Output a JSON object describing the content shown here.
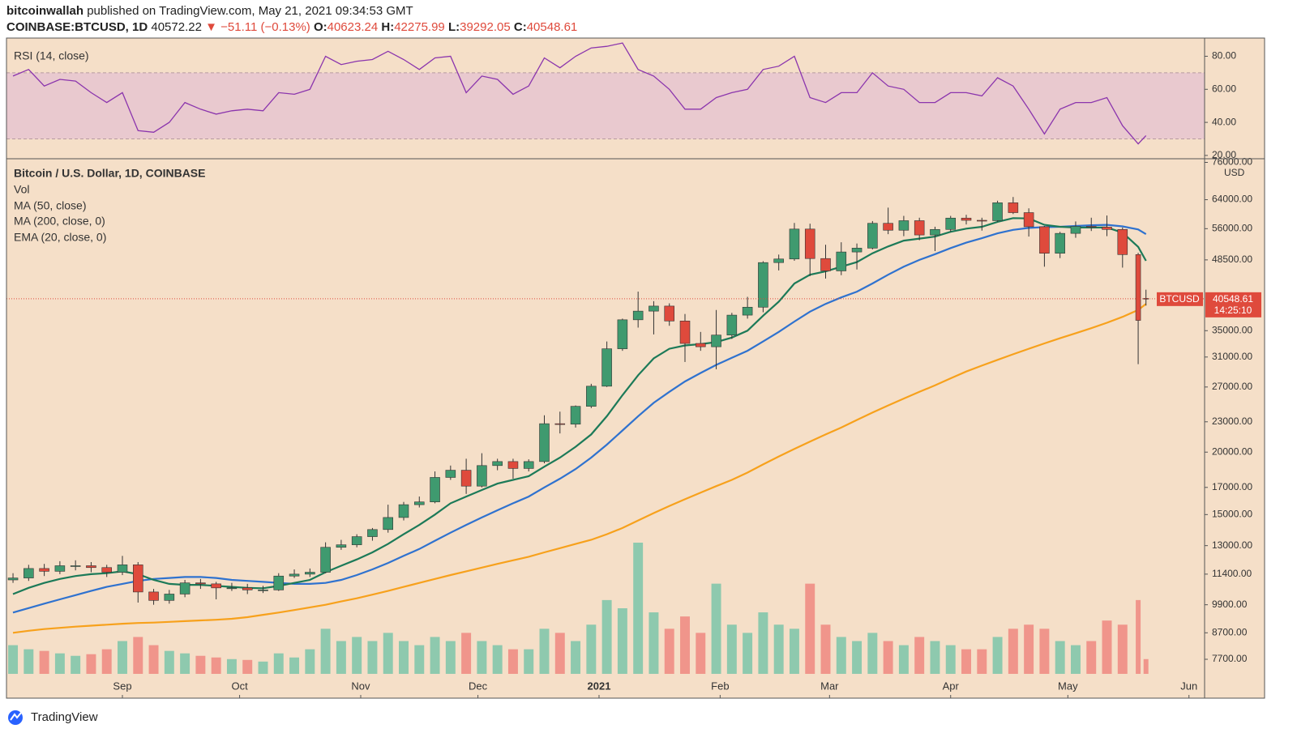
{
  "header": {
    "publisher": "bitcoinwallah",
    "published": "published on TradingView.com, May 21, 2021 09:34:53 GMT",
    "symbol": "COINBASE:BTCUSD, 1D",
    "last": "40572.22",
    "change_arrow": "▼",
    "change": "−51.11 (−0.13%)",
    "open_label": "O:",
    "open": "40623.24",
    "high_label": "H:",
    "high": "42275.99",
    "low_label": "L:",
    "low": "39292.05",
    "close_label": "C:",
    "close": "40548.61"
  },
  "chart_data": {
    "type": "candlestick",
    "title": "Bitcoin / U.S. Dollar, 1D, COINBASE",
    "currency": "USD",
    "log_scale": true,
    "up_color": "#3f9a6f",
    "down_color": "#df4a3c",
    "x": [
      3,
      7,
      11,
      15,
      19,
      23,
      27,
      31,
      35,
      39,
      43,
      47,
      51,
      55,
      59,
      63,
      67,
      71,
      75,
      79,
      83,
      87,
      91,
      95,
      99,
      103,
      107,
      111,
      115,
      119,
      123,
      127,
      131,
      135,
      139,
      143,
      147,
      151,
      155,
      159,
      163,
      167,
      171,
      175,
      179,
      183,
      187,
      191,
      195,
      199,
      203,
      207,
      211,
      215,
      219,
      223,
      227,
      231,
      235,
      239,
      243,
      247,
      251,
      255,
      259,
      263,
      267,
      271,
      275,
      279,
      283,
      287,
      291,
      293
    ],
    "open": [
      11100,
      11200,
      11700,
      11550,
      11850,
      11850,
      11750,
      11500,
      11900,
      10500,
      10100,
      10400,
      10950,
      10900,
      10700,
      10700,
      10600,
      10600,
      11300,
      11400,
      11500,
      12900,
      13050,
      13550,
      14000,
      14800,
      15700,
      15900,
      17800,
      18400,
      17100,
      18800,
      19150,
      18550,
      19150,
      22800,
      22750,
      24700,
      27100,
      32200,
      36800,
      38300,
      39200,
      36600,
      33000,
      32500,
      34300,
      37600,
      39000,
      47900,
      48700,
      55900,
      48800,
      46100,
      50300,
      51200,
      57400,
      55600,
      58100,
      54400,
      55800,
      58800,
      58200,
      58100,
      63100,
      60300,
      56500,
      50000,
      54800,
      56600,
      56400,
      55800,
      49700,
      40623.24
    ],
    "high": [
      11450,
      11900,
      11950,
      12100,
      12150,
      12050,
      11900,
      12400,
      12050,
      10650,
      10600,
      11100,
      11150,
      11000,
      10950,
      10900,
      10800,
      11450,
      11650,
      11700,
      13200,
      13350,
      13700,
      14100,
      15700,
      15900,
      16300,
      18300,
      18800,
      19400,
      19900,
      19400,
      19400,
      19350,
      23700,
      24100,
      24800,
      27400,
      33300,
      37000,
      41900,
      40100,
      39700,
      37800,
      34800,
      38500,
      38000,
      40900,
      48200,
      49700,
      57500,
      57300,
      52000,
      52600,
      52300,
      58000,
      61700,
      59400,
      58900,
      56500,
      59400,
      59700,
      58900,
      63700,
      64800,
      61500,
      56700,
      55200,
      57900,
      58900,
      59500,
      56300,
      50100,
      42275.99
    ],
    "low": [
      10950,
      11050,
      11300,
      11400,
      11600,
      11500,
      11250,
      11350,
      10000,
      9900,
      9950,
      10250,
      10650,
      10150,
      10550,
      10400,
      10450,
      10550,
      11200,
      11250,
      11450,
      12750,
      12900,
      13300,
      13800,
      14600,
      15500,
      15800,
      17600,
      16500,
      17000,
      18400,
      17700,
      18300,
      19000,
      21800,
      22400,
      24500,
      27000,
      31900,
      35500,
      34400,
      35800,
      30300,
      31900,
      29300,
      33700,
      37000,
      38100,
      46200,
      48300,
      45000,
      44500,
      45200,
      46400,
      50900,
      54600,
      54100,
      53100,
      50500,
      55200,
      57100,
      55500,
      57800,
      59900,
      54000,
      47000,
      48900,
      53700,
      55400,
      54100,
      46800,
      30000,
      39292.05
    ],
    "close": [
      11200,
      11700,
      11550,
      11850,
      11850,
      11750,
      11500,
      11900,
      10500,
      10100,
      10400,
      10950,
      10900,
      10700,
      10700,
      10600,
      10600,
      11300,
      11400,
      11500,
      12900,
      13050,
      13550,
      14000,
      14800,
      15700,
      15900,
      17800,
      18400,
      17100,
      18800,
      19150,
      18550,
      19150,
      22800,
      22750,
      24700,
      27100,
      32200,
      36800,
      38300,
      39200,
      36600,
      33000,
      32500,
      34300,
      37600,
      39000,
      47900,
      48700,
      55900,
      48800,
      46100,
      50300,
      51200,
      57400,
      55600,
      58100,
      54400,
      55800,
      58800,
      58200,
      58100,
      63100,
      60300,
      56500,
      50000,
      54800,
      56600,
      56400,
      55800,
      49700,
      36700,
      40548.61
    ],
    "xlim": [
      1.33,
      308
    ],
    "xticks": [
      {
        "value": 31,
        "label": "Sep"
      },
      {
        "value": 61,
        "label": "Oct"
      },
      {
        "value": 92,
        "label": "Nov"
      },
      {
        "value": 122,
        "label": "Dec"
      },
      {
        "value": 153,
        "label": "2021"
      },
      {
        "value": 184,
        "label": "Feb"
      },
      {
        "value": 212,
        "label": "Mar"
      },
      {
        "value": 243,
        "label": "Apr"
      },
      {
        "value": 273,
        "label": "May"
      },
      {
        "value": 304,
        "label": "Jun"
      }
    ],
    "ylim": [
      7200,
      77000
    ],
    "yticks": [
      {
        "value": 76000,
        "label": "76000.00"
      },
      {
        "value": 64000,
        "label": "64000.00"
      },
      {
        "value": 56000,
        "label": "56000.00"
      },
      {
        "value": 48500,
        "label": "48500.00"
      },
      {
        "value": 35000,
        "label": "35000.00"
      },
      {
        "value": 31000,
        "label": "31000.00"
      },
      {
        "value": 27000,
        "label": "27000.00"
      },
      {
        "value": 23000,
        "label": "23000.00"
      },
      {
        "value": 20000,
        "label": "20000.00"
      },
      {
        "value": 17000,
        "label": "17000.00"
      },
      {
        "value": 15000,
        "label": "15000.00"
      },
      {
        "value": 13000,
        "label": "13000.00"
      },
      {
        "value": 11400,
        "label": "11400.00"
      },
      {
        "value": 9900,
        "label": "9900.00"
      },
      {
        "value": 8700,
        "label": "8700.00"
      },
      {
        "value": 7700,
        "label": "7700.00"
      }
    ],
    "volume": {
      "name": "Vol",
      "up_color": "#8ec9ae",
      "down_color": "#f0958b",
      "values": [
        35,
        30,
        28,
        25,
        22,
        24,
        30,
        40,
        45,
        35,
        28,
        25,
        22,
        20,
        18,
        17,
        15,
        25,
        20,
        30,
        55,
        40,
        45,
        40,
        50,
        40,
        35,
        45,
        40,
        50,
        40,
        35,
        30,
        30,
        55,
        50,
        40,
        60,
        90,
        80,
        160,
        75,
        55,
        70,
        50,
        110,
        60,
        50,
        75,
        60,
        55,
        110,
        60,
        45,
        40,
        50,
        40,
        35,
        45,
        40,
        35,
        30,
        30,
        45,
        55,
        60,
        55,
        40,
        35,
        40,
        65,
        60,
        90,
        18
      ]
    },
    "indicators": [
      {
        "name": "MA (50, close)",
        "color": "#2f72cf",
        "values": [
          9550,
          9750,
          9950,
          10150,
          10350,
          10550,
          10750,
          10900,
          11050,
          11150,
          11200,
          11250,
          11250,
          11200,
          11100,
          11050,
          11000,
          10950,
          10900,
          10900,
          10950,
          11100,
          11350,
          11650,
          12000,
          12400,
          12800,
          13300,
          13800,
          14300,
          14800,
          15300,
          15800,
          16300,
          17000,
          17700,
          18500,
          19500,
          20700,
          22100,
          23600,
          25100,
          26400,
          27700,
          28800,
          29900,
          30900,
          31900,
          33300,
          34800,
          36500,
          38200,
          39600,
          40800,
          41900,
          43500,
          45300,
          47000,
          48500,
          49800,
          51200,
          52500,
          53600,
          54800,
          55700,
          56200,
          56400,
          56500,
          56700,
          56900,
          57000,
          56600,
          55800,
          54600
        ]
      },
      {
        "name": "MA (200, close, 0)",
        "color": "#f7a11c",
        "values": [
          8700,
          8780,
          8850,
          8900,
          8950,
          8990,
          9030,
          9070,
          9100,
          9120,
          9150,
          9180,
          9210,
          9240,
          9280,
          9350,
          9450,
          9550,
          9660,
          9780,
          9900,
          10050,
          10200,
          10370,
          10550,
          10750,
          10950,
          11150,
          11350,
          11550,
          11750,
          11950,
          12150,
          12350,
          12600,
          12850,
          13100,
          13350,
          13700,
          14100,
          14600,
          15100,
          15600,
          16100,
          16600,
          17100,
          17600,
          18200,
          18900,
          19600,
          20300,
          21000,
          21700,
          22400,
          23200,
          24000,
          24800,
          25600,
          26400,
          27200,
          28100,
          29000,
          29800,
          30600,
          31400,
          32200,
          33000,
          33800,
          34600,
          35400,
          36300,
          37300,
          38500,
          39600
        ]
      },
      {
        "name": "EMA (20, close, 0)",
        "color": "#1c7a58",
        "values": [
          10400,
          10700,
          10950,
          11150,
          11300,
          11400,
          11450,
          11550,
          11400,
          11100,
          10900,
          10850,
          10850,
          10800,
          10750,
          10700,
          10680,
          10800,
          10950,
          11100,
          11500,
          11850,
          12200,
          12600,
          13100,
          13700,
          14300,
          15000,
          15800,
          16300,
          16800,
          17300,
          17600,
          17900,
          18700,
          19500,
          20500,
          21700,
          23600,
          26000,
          28500,
          30800,
          32200,
          32700,
          32900,
          33200,
          33900,
          35000,
          37500,
          40000,
          43500,
          45300,
          46000,
          47000,
          48000,
          50000,
          51600,
          53000,
          53500,
          54000,
          55200,
          56000,
          56500,
          57800,
          58800,
          58700,
          57000,
          56500,
          56300,
          56300,
          56300,
          55000,
          51500,
          48300
        ]
      }
    ],
    "last_price": {
      "symbol": "BTCUSD",
      "value": 40548.61,
      "countdown": "14:25:10",
      "color": "#df4a3c"
    },
    "rsi": {
      "name": "RSI (14, close)",
      "color": "#8b35ad",
      "band": [
        30,
        70
      ],
      "band_color": "#e9c9cf",
      "ylim": [
        18,
        91
      ],
      "yticks": [
        {
          "value": 80,
          "label": "80.00"
        },
        {
          "value": 60,
          "label": "60.00"
        },
        {
          "value": 40,
          "label": "40.00"
        },
        {
          "value": 20,
          "label": "20.00"
        }
      ],
      "values": [
        68,
        72,
        62,
        66,
        65,
        58,
        52,
        58,
        35,
        34,
        40,
        52,
        48,
        45,
        47,
        48,
        47,
        58,
        57,
        60,
        80,
        75,
        77,
        78,
        83,
        78,
        72,
        79,
        80,
        58,
        68,
        66,
        57,
        62,
        79,
        73,
        80,
        85,
        86,
        88,
        72,
        68,
        60,
        48,
        48,
        55,
        58,
        60,
        72,
        74,
        80,
        55,
        52,
        58,
        58,
        70,
        62,
        60,
        52,
        52,
        58,
        58,
        56,
        67,
        62,
        48,
        33,
        48,
        52,
        52,
        55,
        38,
        27,
        32
      ]
    }
  },
  "footer": {
    "brand": "TradingView"
  }
}
